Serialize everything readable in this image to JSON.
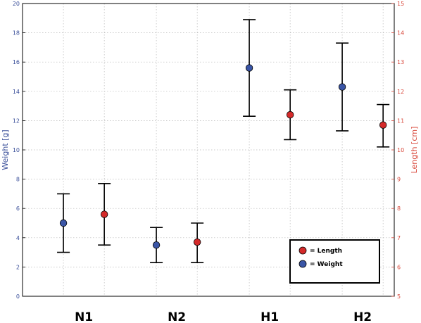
{
  "chart_data": {
    "type": "scatter",
    "categories": [
      "N1",
      "N2",
      "H1",
      "H2"
    ],
    "left_axis": {
      "label": "Weight [g]",
      "ylim": [
        0,
        20
      ],
      "ticks": [
        "0",
        "2",
        "4",
        "6",
        "8",
        "10",
        "12",
        "14",
        "16",
        "18",
        "20"
      ],
      "color": "#3a4f9a"
    },
    "right_axis": {
      "label": "Length [cm]",
      "ylim": [
        5,
        15
      ],
      "ticks": [
        "5",
        "6",
        "7",
        "8",
        "9",
        "10",
        "11",
        "12",
        "13",
        "14",
        "15"
      ],
      "color": "#d9483b"
    },
    "series": [
      {
        "name": "= Weight",
        "axis": "left",
        "color": "#3a55a6",
        "values": [
          5.0,
          3.5,
          15.6,
          14.3
        ],
        "lower": [
          3.0,
          2.3,
          12.3,
          11.3
        ],
        "upper": [
          7.0,
          4.7,
          18.9,
          17.3
        ]
      },
      {
        "name": "= Length",
        "axis": "right",
        "color": "#d42a2a",
        "values": [
          7.8,
          6.85,
          11.2,
          10.85
        ],
        "lower": [
          6.75,
          6.15,
          10.35,
          10.1
        ],
        "upper": [
          8.85,
          7.5,
          12.05,
          11.55
        ]
      }
    ],
    "grid": true,
    "legend_position": "bottom-right"
  }
}
